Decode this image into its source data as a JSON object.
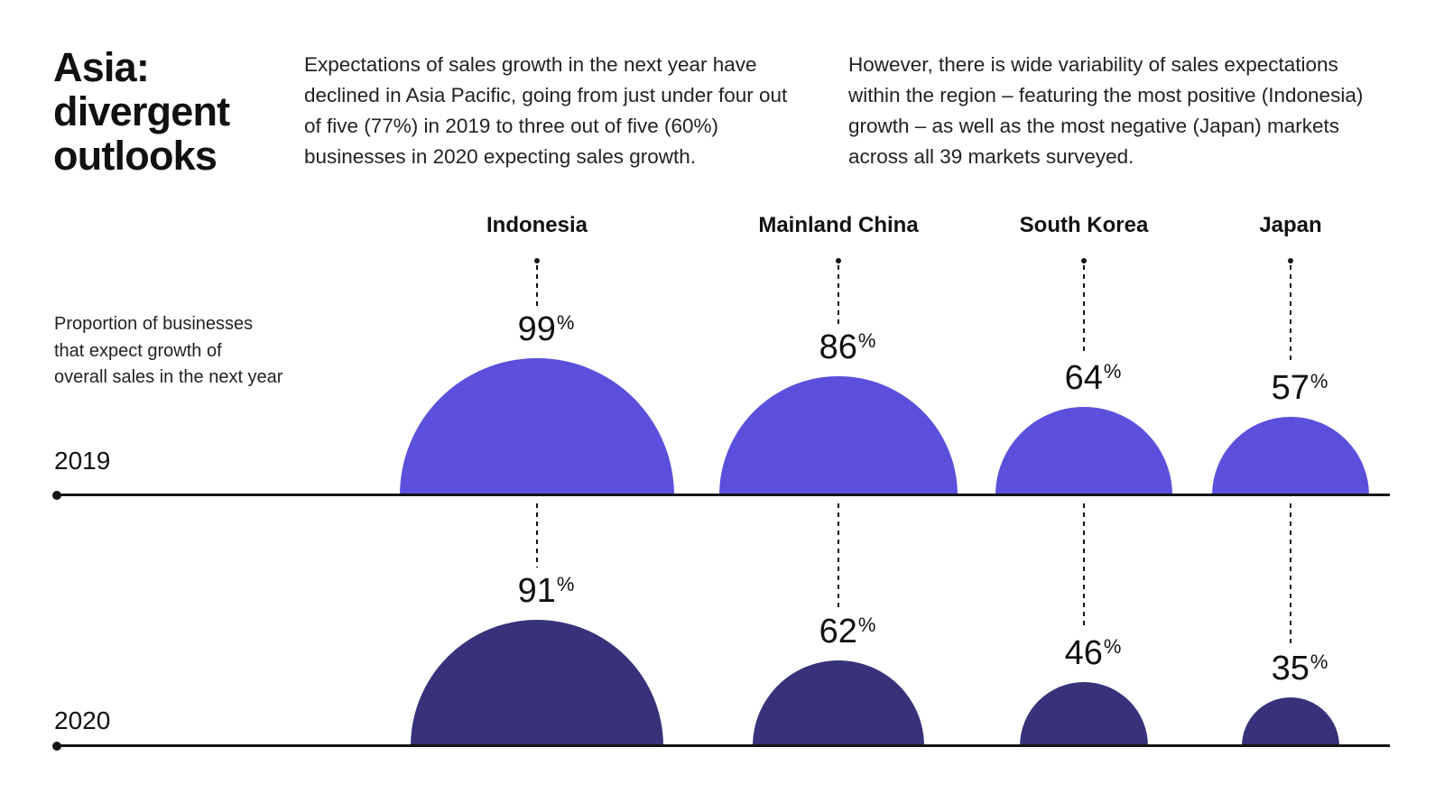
{
  "header": {
    "title": "Asia: divergent outlooks",
    "title_lines": [
      "Asia:",
      "divergent",
      "outlooks"
    ],
    "intro_left": "Expectations of sales growth in the next year have declined in Asia Pacific, going from just under four out of five (77%) in 2019 to three out of five (60%) businesses in 2020 expecting sales growth.",
    "intro_right": "However, there is wide variability of sales expectations within the region – featuring the most positive (Indonesia) growth – as well as the most negative (Japan) markets across all 39 markets surveyed."
  },
  "chart_data": {
    "type": "bar",
    "mark": "semicircle",
    "title": "Asia: divergent outlooks",
    "axis_label": "Proportion of businesses that expect growth of overall sales in the next year",
    "axis_label_lines": [
      "Proportion of businesses",
      "that expect growth of",
      "overall sales in the next year"
    ],
    "categories": [
      "Indonesia",
      "Mainland China",
      "South Korea",
      "Japan"
    ],
    "unit": "%",
    "value_range": [
      0,
      100
    ],
    "series": [
      {
        "name": "2019",
        "values": [
          99,
          86,
          64,
          57
        ],
        "color": "#5b50db"
      },
      {
        "name": "2020",
        "values": [
          91,
          62,
          46,
          35
        ],
        "color": "#37327a"
      }
    ],
    "notes": "Radius of each semicircle is proportional to the percentage value; dashed leader lines connect category labels and rows to each dome."
  },
  "colors": {
    "background": "#ffffff",
    "text": "#1a1a1a",
    "line": "#141414",
    "violet_2019": "#5b50db",
    "indigo_2020": "#37327a"
  }
}
